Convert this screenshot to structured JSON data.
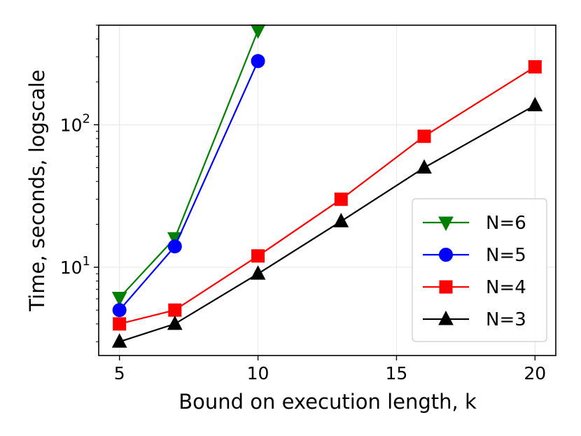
{
  "chart_data": {
    "type": "line",
    "xlabel": "Bound on execution length, k",
    "ylabel": "Time, seconds, logscale",
    "xlim": [
      4.25,
      20.75
    ],
    "ylim": [
      2.4,
      500
    ],
    "yscale": "log",
    "grid": true,
    "legend_position": "lower-right",
    "x_ticks": [
      5,
      10,
      15,
      20
    ],
    "y_ticks": [
      {
        "value": 10,
        "base": "10",
        "exp": "1"
      },
      {
        "value": 100,
        "base": "10",
        "exp": "2"
      }
    ],
    "series": [
      {
        "name": "N=6",
        "color": "#008000",
        "marker": "triangle-down",
        "x": [
          5,
          7,
          10
        ],
        "y": [
          6.1,
          16,
          460
        ]
      },
      {
        "name": "N=5",
        "color": "#0000ff",
        "marker": "circle",
        "x": [
          5,
          7,
          10
        ],
        "y": [
          5,
          14,
          280
        ]
      },
      {
        "name": "N=4",
        "color": "#ff0000",
        "marker": "square",
        "x": [
          5,
          7,
          10,
          13,
          16,
          20
        ],
        "y": [
          4,
          5,
          12,
          30,
          83,
          255
        ]
      },
      {
        "name": "N=3",
        "color": "#000000",
        "marker": "triangle-up",
        "x": [
          5,
          7,
          10,
          13,
          16,
          20
        ],
        "y": [
          3,
          4,
          9,
          21,
          50,
          137
        ]
      }
    ]
  }
}
